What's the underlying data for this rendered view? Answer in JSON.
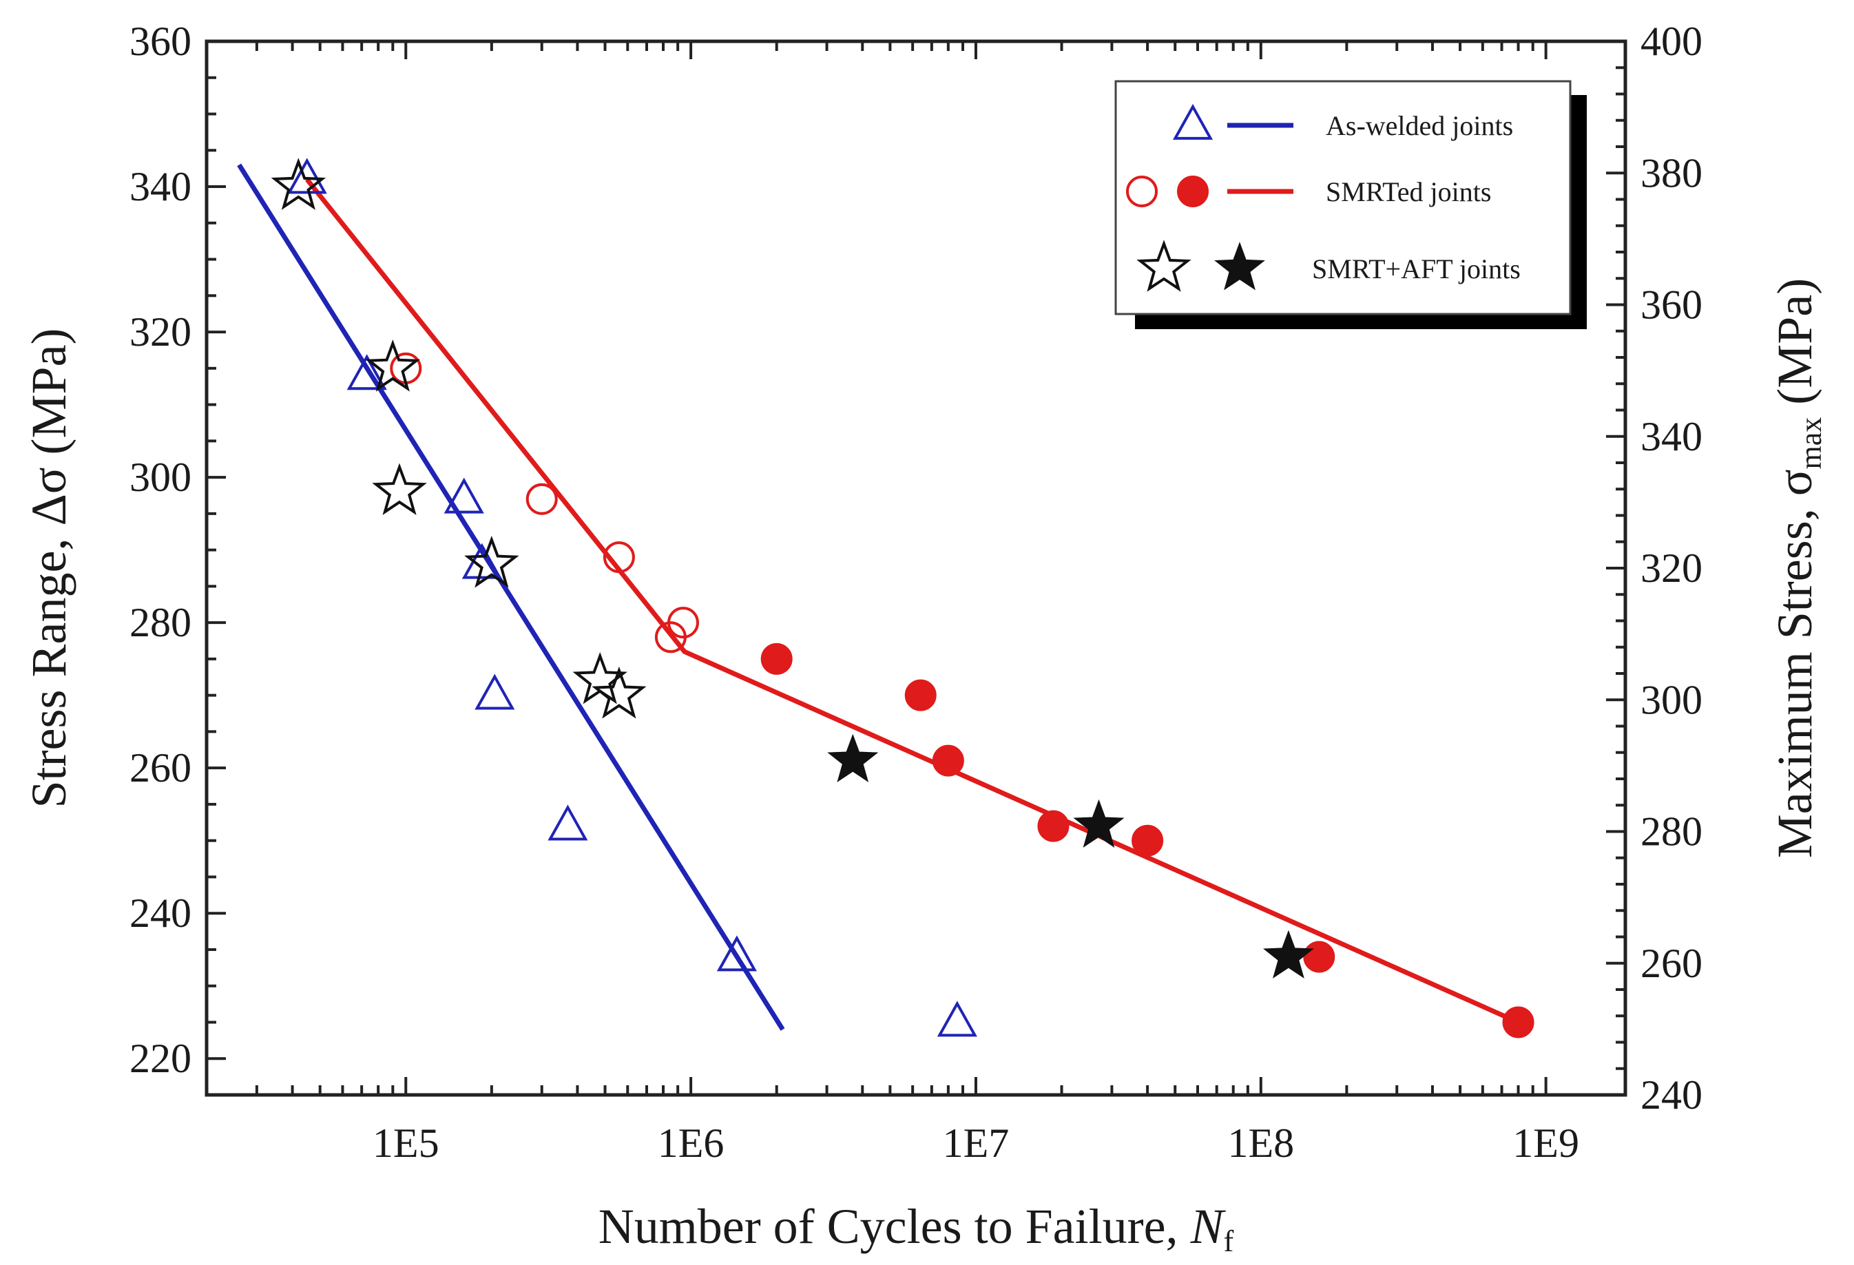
{
  "chart_data": {
    "type": "scatter",
    "x_scale": "log",
    "xlim": [
      20000,
      1900000000
    ],
    "ylim": [
      215,
      360
    ],
    "y2lim": [
      240,
      400
    ],
    "xlabel": "Number of Cycles to Failure, ",
    "xlabel_symbol": "N",
    "xlabel_sub": "f",
    "ylabel": "Stress Range, Δσ (MPa)",
    "y2label": "Maximum Stress, σ",
    "y2label_sub": "max",
    "y2label_unit": " (MPa)",
    "x_ticks": [
      {
        "value": 100000,
        "label": "1E5"
      },
      {
        "value": 1000000,
        "label": "1E6"
      },
      {
        "value": 10000000,
        "label": "1E7"
      },
      {
        "value": 100000000,
        "label": "1E8"
      },
      {
        "value": 1000000000,
        "label": "1E9"
      }
    ],
    "y_ticks": [
      {
        "value": 220,
        "label": "220"
      },
      {
        "value": 240,
        "label": "240"
      },
      {
        "value": 260,
        "label": "260"
      },
      {
        "value": 280,
        "label": "280"
      },
      {
        "value": 300,
        "label": "300"
      },
      {
        "value": 320,
        "label": "320"
      },
      {
        "value": 340,
        "label": "340"
      },
      {
        "value": 360,
        "label": "360"
      }
    ],
    "y2_ticks": [
      {
        "value": 240,
        "label": "240"
      },
      {
        "value": 260,
        "label": "260"
      },
      {
        "value": 280,
        "label": "280"
      },
      {
        "value": 300,
        "label": "300"
      },
      {
        "value": 320,
        "label": "320"
      },
      {
        "value": 340,
        "label": "340"
      },
      {
        "value": 360,
        "label": "360"
      },
      {
        "value": 380,
        "label": "380"
      },
      {
        "value": 400,
        "label": "400"
      }
    ],
    "series": [
      {
        "name": "As-welded joints",
        "marker": "triangle-open",
        "color": "#1f24b5",
        "points": [
          [
            45000,
            341
          ],
          [
            73000,
            314
          ],
          [
            160000,
            297
          ],
          [
            185000,
            288
          ],
          [
            205000,
            270
          ],
          [
            370000,
            252
          ],
          [
            1450000,
            234
          ],
          [
            8600000,
            225
          ]
        ]
      },
      {
        "name": "SMRTed joints (open)",
        "marker": "circle-open",
        "color": "#e01b1b",
        "points": [
          [
            100000,
            315
          ],
          [
            300000,
            297
          ],
          [
            560000,
            289
          ],
          [
            850000,
            278
          ],
          [
            940000,
            280
          ]
        ]
      },
      {
        "name": "SMRTed joints (filled)",
        "marker": "circle-filled",
        "color": "#e01b1b",
        "points": [
          [
            2000000,
            275
          ],
          [
            6400000,
            270
          ],
          [
            8000000,
            261
          ],
          [
            18700000,
            252
          ],
          [
            40000000,
            250
          ],
          [
            160000000,
            234
          ],
          [
            800000000,
            225
          ]
        ]
      },
      {
        "name": "SMRT+AFT joints (open)",
        "marker": "star-open",
        "color": "#111111",
        "points": [
          [
            42000,
            340
          ],
          [
            90000,
            315
          ],
          [
            95000,
            298
          ],
          [
            200000,
            288
          ],
          [
            480000,
            272
          ],
          [
            560000,
            270
          ]
        ]
      },
      {
        "name": "SMRT+AFT joints (filled)",
        "marker": "star-filled",
        "color": "#111111",
        "points": [
          [
            3700000,
            261
          ],
          [
            27000000,
            252
          ],
          [
            125000000,
            234
          ]
        ]
      }
    ],
    "fit_lines": [
      {
        "name": "As-welded joints fit",
        "color": "#1f24b5",
        "points": [
          [
            26000,
            343
          ],
          [
            2100000,
            224
          ]
        ]
      },
      {
        "name": "SMRTed joints fit",
        "color": "#e01b1b",
        "points": [
          [
            45000,
            341
          ],
          [
            950000,
            276
          ],
          [
            800000000,
            225
          ]
        ]
      }
    ],
    "legend": {
      "placement": "top-right",
      "entries": [
        {
          "label": "As-welded joints",
          "markers": [
            "triangle-open"
          ],
          "line_color": "#1f24b5"
        },
        {
          "label": "SMRTed joints",
          "markers": [
            "circle-open",
            "circle-filled"
          ],
          "line_color": "#e01b1b"
        },
        {
          "label": "SMRT+AFT joints",
          "markers": [
            "star-open",
            "star-filled"
          ],
          "line_color": ""
        }
      ]
    }
  }
}
